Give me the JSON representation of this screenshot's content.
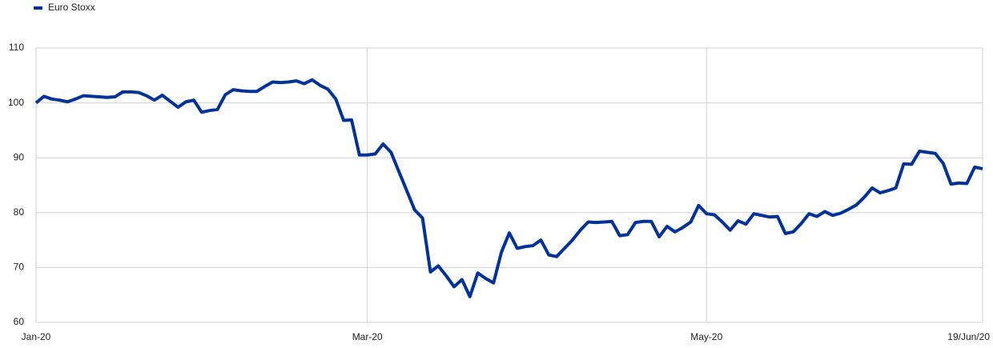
{
  "chart_data": {
    "type": "line",
    "categories": [
      "Jan-20",
      null,
      null,
      null,
      null,
      null,
      null,
      null,
      null,
      null,
      null,
      null,
      null,
      null,
      null,
      null,
      null,
      null,
      null,
      null,
      null,
      null,
      null,
      null,
      null,
      null,
      null,
      null,
      null,
      null,
      null,
      null,
      null,
      null,
      null,
      null,
      null,
      null,
      null,
      null,
      null,
      null,
      "Mar-20",
      null,
      null,
      null,
      null,
      null,
      null,
      null,
      null,
      null,
      null,
      null,
      null,
      null,
      null,
      null,
      null,
      null,
      null,
      null,
      null,
      null,
      null,
      null,
      null,
      null,
      null,
      null,
      null,
      null,
      null,
      null,
      null,
      null,
      null,
      null,
      null,
      null,
      null,
      null,
      null,
      null,
      null,
      "May-20",
      null,
      null,
      null,
      null,
      null,
      null,
      null,
      null,
      null,
      null,
      null,
      null,
      null,
      null,
      null,
      null,
      null,
      null,
      null,
      null,
      null,
      null,
      null,
      null,
      null,
      null,
      null,
      null,
      null,
      null,
      null,
      null,
      null,
      null,
      "19/Jun/20"
    ],
    "series": [
      {
        "name": "Euro Stoxx",
        "color": "#003299",
        "values": [
          100,
          101.2,
          100.7,
          100.5,
          100.2,
          100.7,
          101.3,
          101.2,
          101.1,
          101,
          101.1,
          102,
          102,
          101.9,
          101.3,
          100.5,
          101.4,
          100.3,
          99.2,
          100.2,
          100.5,
          98.3,
          98.6,
          98.8,
          101.5,
          102.4,
          102.2,
          102.1,
          102.1,
          103,
          103.8,
          103.7,
          103.8,
          104,
          103.5,
          104.2,
          103.2,
          102.5,
          100.7,
          96.8,
          96.9,
          90.5,
          90.5,
          90.7,
          92.5,
          91,
          87.5,
          84,
          80.5,
          79,
          69.2,
          70.3,
          68.5,
          66.5,
          67.8,
          64.7,
          69,
          68,
          67.2,
          72.8,
          76.3,
          73.5,
          73.8,
          74,
          75,
          72.3,
          72,
          73.5,
          75,
          76.8,
          78.3,
          78.2,
          78.3,
          78.4,
          75.8,
          76,
          78.2,
          78.4,
          78.4,
          75.6,
          77.5,
          76.5,
          77.3,
          78.3,
          81.3,
          79.8,
          79.6,
          78.3,
          76.8,
          78.5,
          77.9,
          79.8,
          79.5,
          79.2,
          79.3,
          76.2,
          76.5,
          78,
          79.8,
          79.3,
          80.2,
          79.5,
          79.9,
          80.6,
          81.4,
          82.8,
          84.5,
          83.6,
          84,
          84.5,
          88.9,
          88.8,
          91.2,
          91,
          90.8,
          89,
          85.2,
          85.4,
          85.3,
          88.3,
          88
        ]
      }
    ],
    "ylim": [
      60,
      110
    ],
    "yticks": [
      60,
      70,
      80,
      90,
      100,
      110
    ],
    "grid": true,
    "legend": "top-left"
  }
}
